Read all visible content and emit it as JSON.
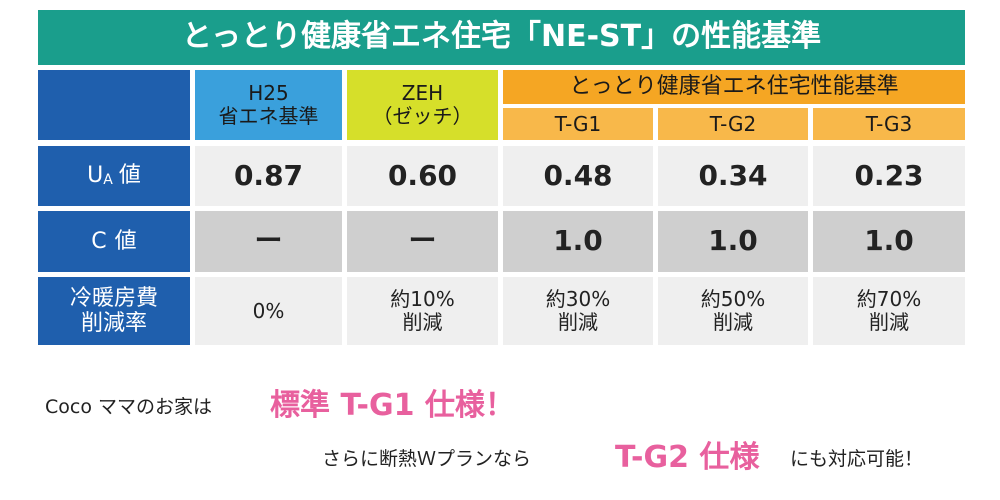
{
  "title": "とっとり健康省エネ住宅「NE-ST」の性能基準",
  "table": {
    "header": {
      "h25": [
        "H25",
        "省エネ基準"
      ],
      "zeh": [
        "ZEH",
        "（ゼッチ）"
      ],
      "group": "とっとり健康省エネ住宅性能基準",
      "grades": [
        "T-G1",
        "T-G2",
        "T-G3"
      ]
    },
    "rows": [
      {
        "label": {
          "main": "U",
          "sub": "A",
          "suffix": "値"
        },
        "cells": [
          [
            "0.87"
          ],
          [
            "0.60"
          ],
          [
            "0.48"
          ],
          [
            "0.34"
          ],
          [
            "0.23"
          ]
        ]
      },
      {
        "label": {
          "main": "C",
          "suffix": "値"
        },
        "cells": [
          [
            "ー"
          ],
          [
            "ー"
          ],
          [
            "1.0"
          ],
          [
            "1.0"
          ],
          [
            "1.0"
          ]
        ]
      },
      {
        "label": {
          "lines": [
            "冷暖房費",
            "削減率"
          ]
        },
        "cells": [
          [
            "0%"
          ],
          [
            "約10%",
            "削減"
          ],
          [
            "約30%",
            "削減"
          ],
          [
            "約50%",
            "削減"
          ],
          [
            "約70%",
            "削減"
          ]
        ]
      }
    ]
  },
  "notes": [
    {
      "lead": "Coco ママのお家は",
      "highlight": "標準 T-G1 仕様！"
    },
    {
      "lead": "さらに断熱Ｗプランなら",
      "highlight": "T-G2 仕様",
      "tail": "にも対応可能！"
    }
  ]
}
